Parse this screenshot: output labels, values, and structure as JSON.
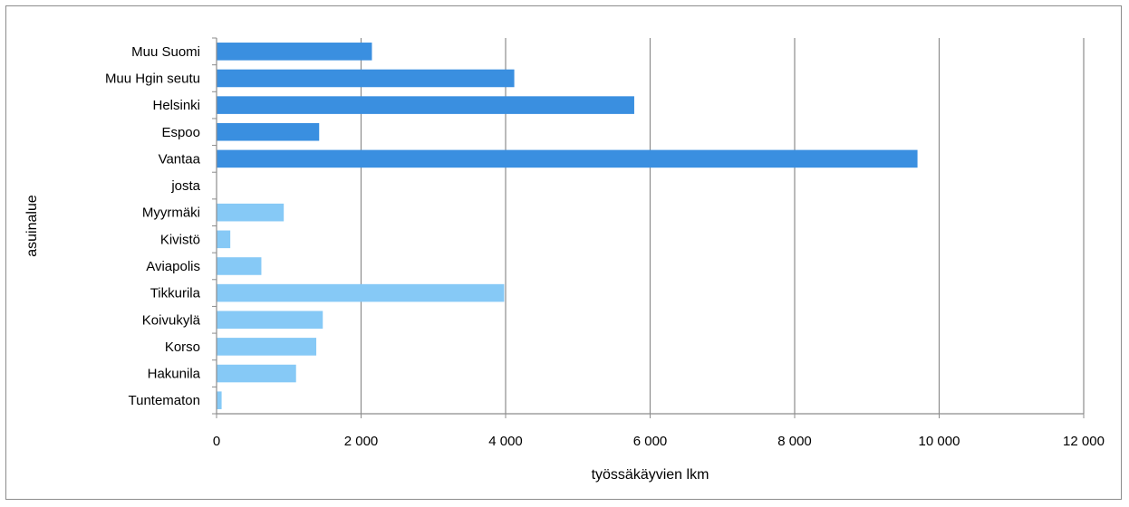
{
  "chart_data": {
    "type": "bar",
    "orientation": "horizontal",
    "xlabel": "työssäkäyvien lkm",
    "ylabel": "asuinalue",
    "xlim": [
      0,
      12000
    ],
    "x_ticks": [
      0,
      2000,
      4000,
      6000,
      8000,
      10000,
      12000
    ],
    "x_tick_labels": [
      "0",
      "2 000",
      "4 000",
      "6 000",
      "8 000",
      "10 000",
      "12 000"
    ],
    "grid": "vertical",
    "categories": [
      "Muu Suomi",
      "Muu Hgin seutu",
      "Helsinki",
      "Espoo",
      "Vantaa",
      "josta",
      "Myyrmäki",
      "Kivistö",
      "Aviapolis",
      "Tikkurila",
      "Koivukylä",
      "Korso",
      "Hakunila",
      "Tuntematon"
    ],
    "values": [
      2150,
      4120,
      5780,
      1420,
      9700,
      0,
      930,
      190,
      620,
      3980,
      1470,
      1380,
      1100,
      70
    ],
    "colors": {
      "primary": "#3a8fe0",
      "secondary": "#86c9f6",
      "grid": "#8c8c8c",
      "axis": "#8c8c8c"
    },
    "bar_color_groups": [
      "primary",
      "primary",
      "primary",
      "primary",
      "primary",
      "none",
      "secondary",
      "secondary",
      "secondary",
      "secondary",
      "secondary",
      "secondary",
      "secondary",
      "secondary"
    ]
  }
}
